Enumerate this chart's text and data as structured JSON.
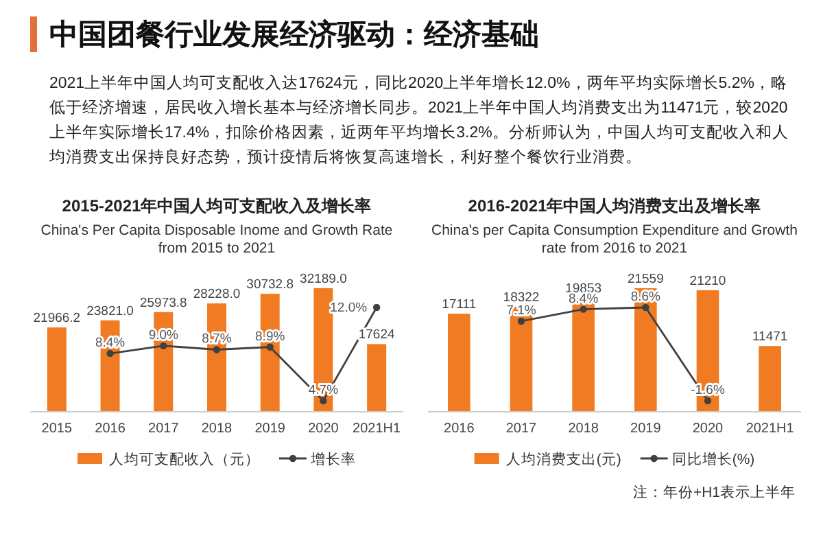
{
  "chart_data": [
    {
      "type": "other",
      "title": "中国团餐行业发展经济驱动：经济基础",
      "color": "#e2703a",
      "annotations": [
        "2021上半年中国人均可支配收入达17624元，同比2020上半年增长12.0%，两年平均实际增长5.2%，略低于经济增速，居民收入增长基本与经济增长同步。2021上半年中国人均消费支出为11471元，较2020上半年实际增长17.4%，扣除价格因素，近两年平均增长3.2%。分析师认为，中国人均可支配收入和人均消费支出保持良好态势，预计疫情后将恢复高速增长，利好整个餐饮行业消费。"
      ]
    },
    {
      "type": "bar",
      "title": "2015-2021年中国人均可支配收入及增长率",
      "subtitle": "China's Per Capita Disposable Inome and Growth Rate from 2015 to 2021",
      "categories": [
        "2015",
        "2016",
        "2017",
        "2018",
        "2019",
        "2020",
        "2021H1"
      ],
      "legend": "bottom",
      "series": [
        {
          "name": "人均可支配收入（元）",
          "type": "bar",
          "color": "#f07b22",
          "values": [
            21966.2,
            23821.0,
            25973.8,
            28228.0,
            30732.8,
            32189.0,
            17624
          ],
          "value_labels": [
            "21966.2",
            "23821.0",
            "25973.8",
            "28228.0",
            "30732.8",
            "32189.0",
            "17624"
          ]
        },
        {
          "name": "增长率",
          "type": "line",
          "axis": "y2",
          "color": "#404040",
          "marker": "circle",
          "line_style": "solid",
          "values": [
            null,
            8.4,
            9.0,
            8.7,
            8.9,
            4.7,
            12.0
          ],
          "value_labels": [
            null,
            "8.4%",
            "9.0%",
            "8.7%",
            "8.9%",
            "4.7%",
            "12.0%"
          ]
        }
      ]
    },
    {
      "type": "bar",
      "title": "2016-2021年中国人均消费支出及增长率",
      "subtitle": "China's per Capita Consumption Expenditure and Growth rate from 2016 to 2021",
      "categories": [
        "2016",
        "2017",
        "2018",
        "2019",
        "2020",
        "2021H1"
      ],
      "legend": "bottom",
      "annotations": [
        "注：年份+H1表示上半年"
      ],
      "series": [
        {
          "name": "人均消费支出(元)",
          "type": "bar",
          "color": "#f07b22",
          "values": [
            17111,
            18322,
            19853,
            21559,
            21210,
            11471
          ],
          "value_labels": [
            "17111",
            "18322",
            "19853",
            "21559",
            "21210",
            "11471"
          ]
        },
        {
          "name": "同比增长(%)",
          "type": "line",
          "axis": "y2",
          "color": "#404040",
          "marker": "circle",
          "line_style": "solid",
          "values": [
            null,
            7.1,
            8.4,
            8.6,
            -1.6,
            null
          ],
          "value_labels": [
            null,
            "7.1%",
            "8.4%",
            "8.6%",
            "-1.6%",
            null
          ]
        }
      ]
    }
  ]
}
